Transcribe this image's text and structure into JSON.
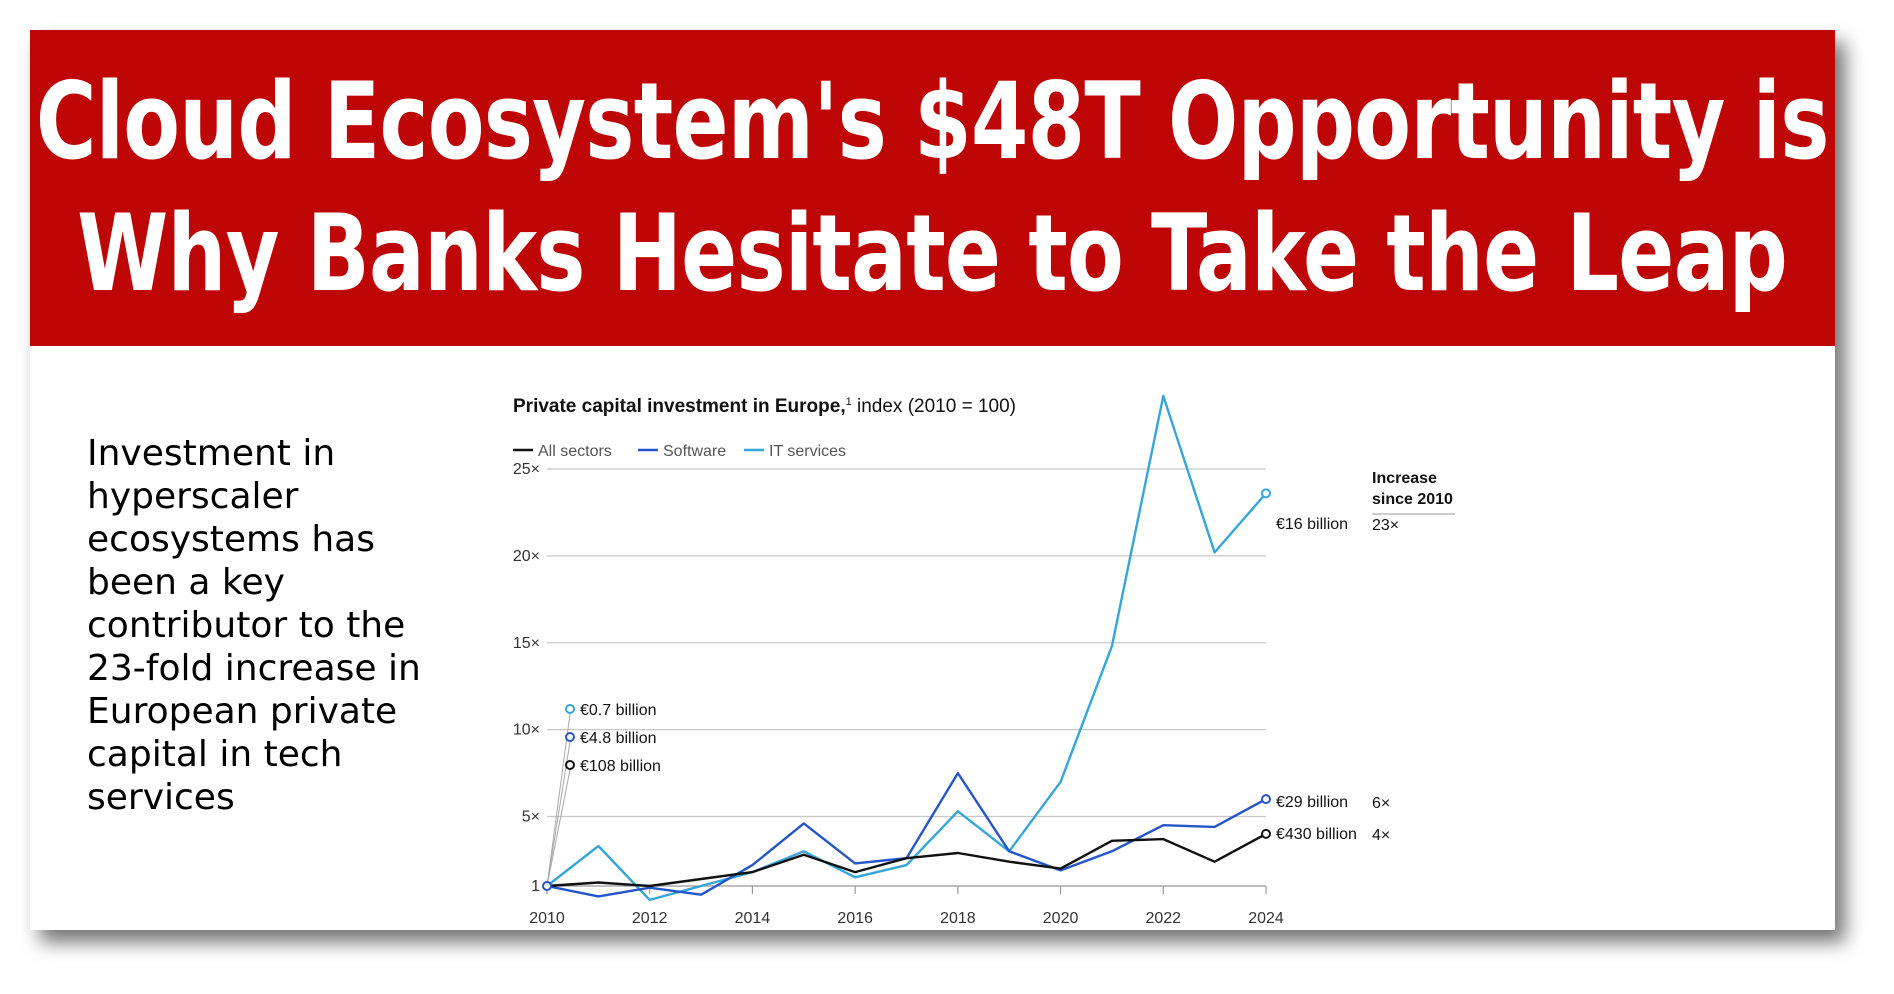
{
  "headline": {
    "line1": "Cloud Ecosystem's $48T Opportunity is",
    "line2": "Why Banks Hesitate to Take the Leap"
  },
  "side_text": "Investment in hyperscaler ecosystems has been a key contributor to the 23-fold increase in European private capital in tech services",
  "colors": {
    "banner": "#be0606",
    "all_sectors": "#111111",
    "software": "#2456c9",
    "it_services": "#35a6d9",
    "grid": "#c8c8c8"
  },
  "chart_data": {
    "type": "line",
    "title_bold": "Private capital investment in Europe,",
    "title_footnote": "1",
    "title_rest": "index (2010 = 100)",
    "x": [
      2010,
      2011,
      2012,
      2013,
      2014,
      2015,
      2016,
      2017,
      2018,
      2019,
      2020,
      2021,
      2022,
      2023,
      2024
    ],
    "x_ticks": [
      "2010",
      "2012",
      "2014",
      "2016",
      "2018",
      "2020",
      "2022",
      "2024"
    ],
    "y_ticks": [
      {
        "value": 1,
        "label": "1"
      },
      {
        "value": 5,
        "label": "5×"
      },
      {
        "value": 10,
        "label": "10×"
      },
      {
        "value": 15,
        "label": "15×"
      },
      {
        "value": 20,
        "label": "20×"
      },
      {
        "value": 25,
        "label": "25×"
      }
    ],
    "ylim": [
      1,
      25
    ],
    "grid": true,
    "legend_position": "top-left",
    "series": [
      {
        "name": "All sectors",
        "color_key": "all_sectors",
        "values": [
          1,
          1.2,
          1.0,
          1.4,
          1.8,
          2.8,
          1.8,
          2.6,
          2.9,
          2.4,
          2.0,
          3.6,
          3.7,
          2.4,
          4.0
        ],
        "start_label": "€108 billion",
        "end_label": "€430 billion",
        "increase": "4×"
      },
      {
        "name": "Software",
        "color_key": "software",
        "values": [
          1,
          0.4,
          0.9,
          0.5,
          2.2,
          4.6,
          2.3,
          2.6,
          7.5,
          3.0,
          1.9,
          3.0,
          4.5,
          4.4,
          6.0
        ],
        "start_label": "€4.8 billion",
        "end_label": "€29 billion",
        "increase": "6×"
      },
      {
        "name": "IT services",
        "color_key": "it_services",
        "values": [
          1,
          3.3,
          0.2,
          1.0,
          1.8,
          3.0,
          1.5,
          2.2,
          5.3,
          3.0,
          7.0,
          14.8,
          29.2,
          20.2,
          23.6
        ],
        "start_label": "€0.7 billion",
        "end_label": "€16 billion",
        "increase": "23×"
      }
    ],
    "increase_header": "Increase since 2010"
  }
}
